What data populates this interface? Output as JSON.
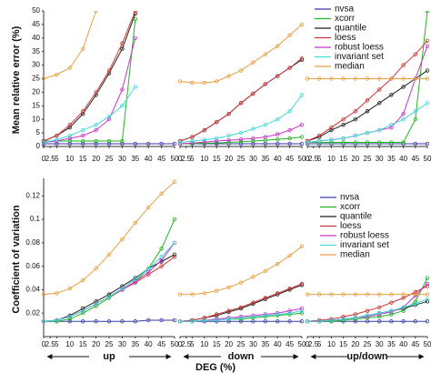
{
  "chart_data": [
    {
      "type": "line",
      "ylabel": "Mean relative error (%)",
      "ylim": [
        0,
        50
      ],
      "yticks": [
        0,
        5,
        10,
        15,
        20,
        25,
        30,
        35,
        40,
        45,
        50
      ],
      "xlim": [
        0,
        50
      ],
      "xticks": [
        0,
        2.5,
        5,
        10,
        15,
        20,
        25,
        30,
        35,
        40,
        45,
        50
      ],
      "x": [
        0,
        5,
        10,
        15,
        20,
        25,
        30,
        35,
        40,
        45,
        50
      ],
      "series": [
        {
          "name": "nvsa",
          "color": "#3b3ba8",
          "panels": [
            [
              1,
              1,
              1,
              1,
              1,
              1,
              1,
              1,
              1,
              1,
              1
            ],
            [
              1,
              1,
              1,
              1,
              1,
              1,
              1,
              1,
              1,
              1,
              1
            ],
            [
              1,
              1,
              1,
              1,
              1,
              1,
              1,
              1,
              1,
              1,
              1
            ]
          ]
        },
        {
          "name": "xcorr",
          "color": "#22b522",
          "panels": [
            [
              2,
              2,
              2,
              2,
              2,
              2,
              2,
              47,
              null,
              null,
              null
            ],
            [
              1,
              1.1,
              1.2,
              1.3,
              1.5,
              1.7,
              2,
              2.3,
              2.6,
              3,
              3.5
            ],
            [
              1.5,
              1.5,
              1.5,
              1.5,
              1.5,
              1.5,
              1.5,
              1.5,
              1.5,
              10,
              50
            ]
          ]
        },
        {
          "name": "quantile",
          "color": "#222222",
          "panels": [
            [
              2,
              4,
              7,
              12,
              19,
              27,
              36,
              49,
              null,
              null,
              null
            ],
            [
              2,
              3.5,
              6,
              9,
              12,
              16,
              19.5,
              23,
              26,
              29,
              32
            ],
            [
              2,
              3.5,
              6,
              8,
              10,
              13,
              16,
              19,
              22,
              25,
              28
            ]
          ]
        },
        {
          "name": "loess",
          "color": "#c83a3a",
          "panels": [
            [
              2,
              4,
              8,
              13,
              20,
              28,
              38,
              50,
              null,
              null,
              null
            ],
            [
              2,
              3.5,
              6,
              9,
              12,
              16,
              19.5,
              23,
              26,
              29,
              32.5
            ],
            [
              2,
              4,
              7,
              10,
              13,
              17,
              21,
              25,
              30,
              34,
              39
            ]
          ]
        },
        {
          "name": "robust loess",
          "color": "#cc33cc",
          "panels": [
            [
              1.5,
              2,
              3,
              4,
              6,
              10,
              21,
              40,
              null,
              null,
              null
            ],
            [
              1,
              1.3,
              1.6,
              2,
              2.3,
              2.6,
              3,
              3.5,
              4.5,
              6,
              8
            ],
            [
              1.5,
              2,
              2.5,
              3,
              4,
              5,
              6,
              7,
              12,
              25,
              37
            ]
          ]
        },
        {
          "name": "invariant set",
          "color": "#44d8d8",
          "panels": [
            [
              1.5,
              2.5,
              4,
              6,
              8,
              11,
              15,
              22,
              null,
              null,
              null
            ],
            [
              1.5,
              2,
              2.5,
              3,
              4,
              5,
              6.5,
              8,
              10,
              13,
              19
            ],
            [
              1.5,
              2,
              2.5,
              3,
              4,
              5,
              6,
              8,
              10,
              13,
              16
            ]
          ]
        },
        {
          "name": "median",
          "color": "#e8a040",
          "panels": [
            [
              25,
              26.5,
              29,
              36,
              50,
              null,
              null,
              null,
              null,
              null,
              null
            ],
            [
              24,
              23.5,
              23.5,
              24,
              26,
              28,
              31,
              34,
              37,
              41,
              45
            ],
            [
              25,
              25,
              25,
              25,
              25,
              25,
              25,
              25,
              25,
              25,
              25
            ]
          ]
        }
      ]
    },
    {
      "type": "line",
      "ylabel": "Coefficient of variation",
      "ylim": [
        0,
        0.135
      ],
      "yticks": [
        0.02,
        0.04,
        0.06,
        0.08,
        0.1,
        0.12
      ],
      "xlim": [
        0,
        50
      ],
      "xticks": [
        0,
        2.5,
        5,
        10,
        15,
        20,
        25,
        30,
        35,
        40,
        45,
        50
      ],
      "x": [
        0,
        5,
        10,
        15,
        20,
        25,
        30,
        35,
        40,
        45,
        50
      ],
      "groups": [
        "up",
        "down",
        "up/down"
      ],
      "xlabel": "DEG (%)",
      "series": [
        {
          "name": "nvsa",
          "color": "#3b3ba8",
          "panels": [
            [
              0.013,
              0.013,
              0.013,
              0.013,
              0.013,
              0.013,
              0.013,
              0.013,
              0.014,
              0.014,
              0.014
            ],
            [
              0.013,
              0.013,
              0.013,
              0.013,
              0.013,
              0.013,
              0.013,
              0.013,
              0.013,
              0.013,
              0.013
            ],
            [
              0.013,
              0.013,
              0.013,
              0.013,
              0.013,
              0.013,
              0.013,
              0.013,
              0.013,
              0.013,
              0.013
            ]
          ]
        },
        {
          "name": "xcorr",
          "color": "#22b522",
          "panels": [
            [
              0.013,
              0.013,
              0.015,
              0.02,
              0.026,
              0.033,
              0.04,
              0.047,
              0.058,
              0.075,
              0.1
            ],
            [
              0.013,
              0.013,
              0.014,
              0.014,
              0.015,
              0.015,
              0.016,
              0.017,
              0.018,
              0.019,
              0.02
            ],
            [
              0.013,
              0.013,
              0.013,
              0.014,
              0.015,
              0.016,
              0.017,
              0.019,
              0.022,
              0.03,
              0.05
            ]
          ]
        },
        {
          "name": "quantile",
          "color": "#222222",
          "panels": [
            [
              0.013,
              0.014,
              0.018,
              0.024,
              0.03,
              0.036,
              0.043,
              0.05,
              0.058,
              0.064,
              0.07
            ],
            [
              0.013,
              0.014,
              0.016,
              0.018,
              0.021,
              0.024,
              0.028,
              0.032,
              0.036,
              0.04,
              0.044
            ],
            [
              0.013,
              0.013,
              0.014,
              0.015,
              0.016,
              0.018,
              0.02,
              0.022,
              0.024,
              0.027,
              0.03
            ]
          ]
        },
        {
          "name": "loess",
          "color": "#c83a3a",
          "panels": [
            [
              0.013,
              0.014,
              0.017,
              0.022,
              0.028,
              0.034,
              0.04,
              0.046,
              0.053,
              0.06,
              0.068
            ],
            [
              0.013,
              0.014,
              0.016,
              0.019,
              0.022,
              0.025,
              0.029,
              0.033,
              0.037,
              0.041,
              0.045
            ],
            [
              0.013,
              0.014,
              0.015,
              0.017,
              0.019,
              0.022,
              0.025,
              0.029,
              0.033,
              0.038,
              0.043
            ]
          ]
        },
        {
          "name": "robust loess",
          "color": "#cc33cc",
          "panels": [
            [
              0.013,
              0.014,
              0.017,
              0.022,
              0.028,
              0.034,
              0.04,
              0.047,
              0.055,
              0.065,
              0.08
            ],
            [
              0.013,
              0.013,
              0.014,
              0.015,
              0.016,
              0.017,
              0.018,
              0.019,
              0.02,
              0.022,
              0.024
            ],
            [
              0.013,
              0.013,
              0.014,
              0.015,
              0.016,
              0.017,
              0.019,
              0.021,
              0.025,
              0.035,
              0.045
            ]
          ]
        },
        {
          "name": "invariant set",
          "color": "#44d8d8",
          "panels": [
            [
              0.013,
              0.014,
              0.017,
              0.022,
              0.028,
              0.034,
              0.041,
              0.049,
              0.058,
              0.068,
              0.08
            ],
            [
              0.013,
              0.013,
              0.014,
              0.014,
              0.015,
              0.016,
              0.017,
              0.018,
              0.019,
              0.02,
              0.022
            ],
            [
              0.013,
              0.013,
              0.014,
              0.015,
              0.016,
              0.018,
              0.02,
              0.022,
              0.025,
              0.028,
              0.032
            ]
          ]
        },
        {
          "name": "median",
          "color": "#e8a040",
          "panels": [
            [
              0.036,
              0.037,
              0.041,
              0.048,
              0.058,
              0.07,
              0.083,
              0.097,
              0.11,
              0.122,
              0.132
            ],
            [
              0.036,
              0.036,
              0.037,
              0.039,
              0.042,
              0.046,
              0.051,
              0.056,
              0.062,
              0.069,
              0.077
            ],
            [
              0.036,
              0.036,
              0.036,
              0.036,
              0.036,
              0.036,
              0.036,
              0.036,
              0.036,
              0.036,
              0.036
            ]
          ]
        }
      ]
    }
  ]
}
